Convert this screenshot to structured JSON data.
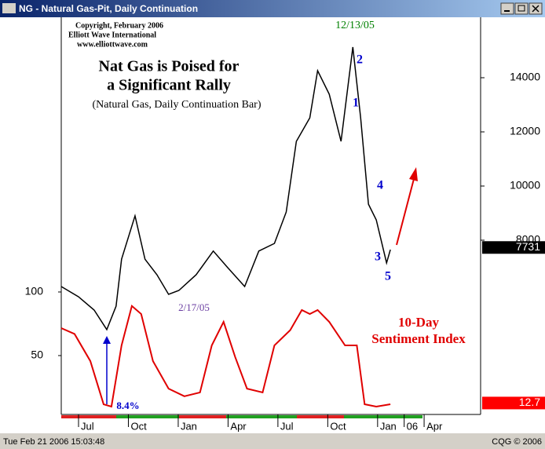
{
  "window": {
    "title": "NG - Natural Gas-Pit, Daily Continuation"
  },
  "status": {
    "datetime": "Tue Feb 21 2006 15:03:48",
    "vendor": "CQG © 2006"
  },
  "chart_data": {
    "type": "line",
    "credits": [
      "Copyright, February 2006",
      "Elliott Wave International",
      "www.elliottwave.com"
    ],
    "title": [
      "Nat Gas is Poised for",
      "a Significant Rally"
    ],
    "subtitle": "(Natural Gas, Daily Continuation Bar)",
    "annotations": [
      "12/13/05",
      "2",
      "1",
      "4",
      "3",
      "5",
      "2/17/05",
      "8.4%",
      "10-Day",
      "Sentiment Index"
    ],
    "xlim": [
      -1.04,
      24.2
    ],
    "xticks": [
      {
        "value": 0,
        "label": "Jul"
      },
      {
        "value": 3,
        "label": "Oct"
      },
      {
        "value": 6,
        "label": "Jan"
      },
      {
        "value": 9,
        "label": "Apr"
      },
      {
        "value": 12,
        "label": "Jul"
      },
      {
        "value": 15,
        "label": "Oct"
      },
      {
        "value": 18,
        "label": "Jan"
      },
      {
        "value": 19.6,
        "label": "06"
      },
      {
        "value": 20.8,
        "label": "Apr"
      }
    ],
    "ylim": [
      1565,
      16232
    ],
    "yticks": [
      8000,
      10000,
      12000,
      14000
    ],
    "y2lim": [
      3.7,
      316
    ],
    "y2ticks": [
      50,
      100
    ],
    "last_price": 7731,
    "last_sentiment": 12.7,
    "series": [
      {
        "name": "Natural Gas",
        "color": "#000000",
        "x": [
          -1.04,
          0,
          0.94,
          1.7,
          2.26,
          2.59,
          3.4,
          4.0,
          4.72,
          5.42,
          6.04,
          7.08,
          8.11,
          8.96,
          10.0,
          10.85,
          11.79,
          12.5,
          13.11,
          13.92,
          14.39,
          15.09,
          15.8,
          16.51,
          16.98,
          17.45,
          17.92,
          18.54,
          18.77
        ],
        "values": [
          6290,
          5910,
          5420,
          4700,
          5565,
          7300,
          8900,
          7300,
          6725,
          6000,
          6145,
          6725,
          7600,
          7000,
          6290,
          7600,
          7880,
          9040,
          11650,
          12520,
          14260,
          13390,
          11650,
          15130,
          12520,
          9330,
          8750,
          7160,
          7650
        ]
      },
      {
        "name": "10-Day Sentiment Index",
        "color": "#e00000",
        "axis": "y2",
        "x": [
          -1.04,
          -0.24,
          0.71,
          1.51,
          1.98,
          2.59,
          3.21,
          3.77,
          4.48,
          5.42,
          6.37,
          7.31,
          8.02,
          8.73,
          9.43,
          10.14,
          11.08,
          11.79,
          12.74,
          13.44,
          13.92,
          14.39,
          15.09,
          16.04,
          16.75,
          17.22,
          17.92,
          18.77
        ],
        "values": [
          71.6,
          67,
          45.7,
          11.7,
          9.9,
          58,
          89,
          82.7,
          45.7,
          24,
          18,
          21,
          58,
          76.5,
          48.8,
          24,
          21,
          58,
          70,
          85.8,
          82.7,
          85.8,
          76.5,
          58,
          58,
          11.7,
          9.9,
          11.7
        ]
      }
    ]
  }
}
